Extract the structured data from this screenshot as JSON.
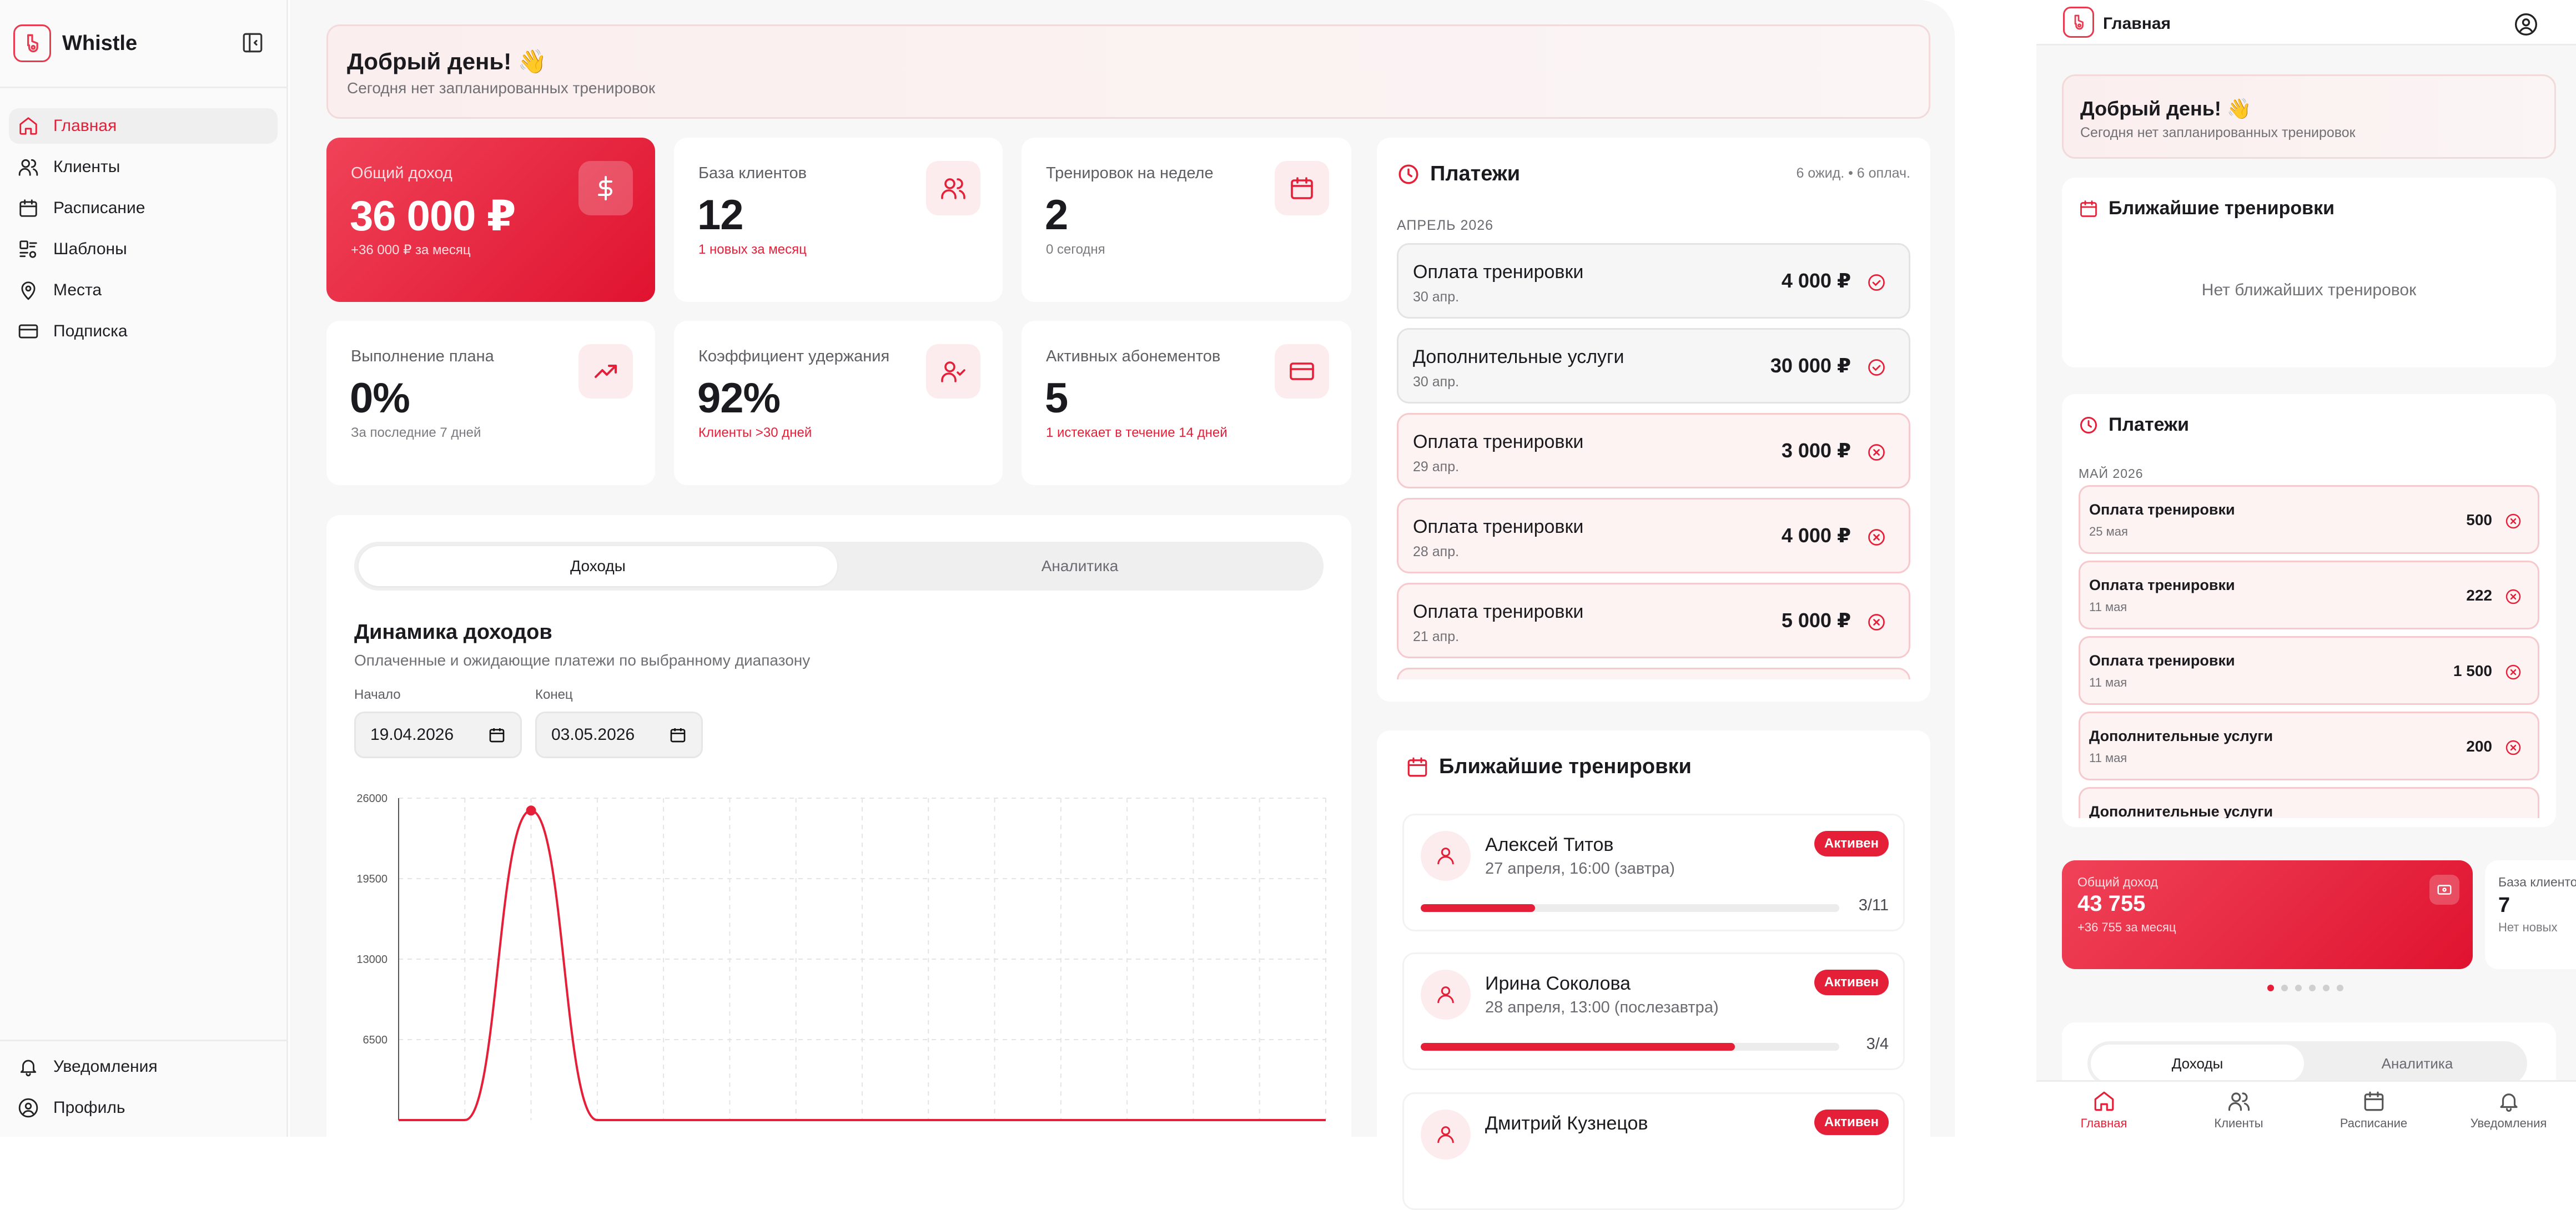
{
  "app": {
    "name": "Whistle"
  },
  "sidebar": {
    "items": [
      {
        "label": "Главная",
        "icon": "home-icon",
        "active": true
      },
      {
        "label": "Клиенты",
        "icon": "users-icon"
      },
      {
        "label": "Расписание",
        "icon": "calendar-icon"
      },
      {
        "label": "Шаблоны",
        "icon": "templates-icon"
      },
      {
        "label": "Места",
        "icon": "map-pin-icon"
      },
      {
        "label": "Подписка",
        "icon": "credit-card-icon"
      }
    ],
    "bottom": [
      {
        "label": "Уведомления",
        "icon": "bell-icon"
      },
      {
        "label": "Профиль",
        "icon": "user-circle-icon"
      }
    ]
  },
  "greeting": {
    "title": "Добрый день! 👋",
    "subtitle": "Сегодня нет запланированных тренировок"
  },
  "stats": [
    {
      "label": "Общий доход",
      "value": "36 000 ₽",
      "sub": "+36 000 ₽ за месяц",
      "icon": "dollar-icon"
    },
    {
      "label": "База клиентов",
      "value": "12",
      "sub": "1 новых за месяц",
      "icon": "users-icon"
    },
    {
      "label": "Тренировок на неделе",
      "value": "2",
      "sub": "0 сегодня",
      "icon": "calendar-icon"
    },
    {
      "label": "Выполнение плана",
      "value": "0%",
      "sub": "За последние 7 дней",
      "icon": "trending-up-icon"
    },
    {
      "label": "Коэффициент удержания",
      "value": "92%",
      "sub": "Клиенты >30 дней",
      "icon": "user-check-icon"
    },
    {
      "label": "Активных абонементов",
      "value": "5",
      "sub": "1 истекает в течение 14 дней",
      "icon": "credit-card-icon"
    }
  ],
  "chart_section": {
    "tabs": [
      "Доходы",
      "Аналитика"
    ],
    "active_tab": "Доходы",
    "title": "Динамика доходов",
    "subtitle": "Оплаченные и ожидающие платежи по выбранному диапазону",
    "start_label": "Начало",
    "start_value": "19.04.2026",
    "end_label": "Конец",
    "end_value": "03.05.2026"
  },
  "chart_data": {
    "type": "line",
    "title": "Динамика доходов",
    "y_ticks": [
      26000,
      19500,
      13000,
      6500
    ],
    "ylim": [
      0,
      26000
    ],
    "x": [
      0,
      1,
      2,
      3,
      4,
      5,
      6,
      7,
      8,
      9,
      10,
      11,
      12,
      13,
      14
    ],
    "series": [
      {
        "values": [
          0,
          0,
          25000,
          0,
          0,
          0,
          0,
          0,
          0,
          0,
          0,
          0,
          0,
          0,
          0
        ]
      }
    ],
    "grid": true,
    "colors": {
      "line": "#e51f38"
    }
  },
  "payments": {
    "title": "Платежи",
    "count": "6 ожид. • 6 оплач.",
    "month": "АПРЕЛЬ 2026",
    "items": [
      {
        "name": "Оплата тренировки",
        "date": "30 апр.",
        "amount": "4 000 ₽",
        "status": "paid"
      },
      {
        "name": "Дополнительные услуги",
        "date": "30 апр.",
        "amount": "30 000 ₽",
        "status": "paid"
      },
      {
        "name": "Оплата тренировки",
        "date": "29 апр.",
        "amount": "3 000 ₽",
        "status": "pending"
      },
      {
        "name": "Оплата тренировки",
        "date": "28 апр.",
        "amount": "4 000 ₽",
        "status": "pending"
      },
      {
        "name": "Оплата тренировки",
        "date": "21 апр.",
        "amount": "5 000 ₽",
        "status": "pending"
      }
    ]
  },
  "upcoming": {
    "title": "Ближайшие тренировки",
    "items": [
      {
        "name": "Алексей Титов",
        "time": "27 апреля, 16:00 (завтра)",
        "badge": "Активен",
        "progress": "3/11",
        "fraction": 0.273
      },
      {
        "name": "Ирина Соколова",
        "time": "28 апреля, 13:00 (послезавтра)",
        "badge": "Активен",
        "progress": "3/4",
        "fraction": 0.75
      },
      {
        "name": "Дмитрий Кузнецов",
        "time": "",
        "badge": "Активен",
        "progress": "",
        "fraction": 0
      }
    ]
  },
  "mobile": {
    "header_title": "Главная",
    "greeting_title": "Добрый день! 👋",
    "greeting_subtitle": "Сегодня нет запланированных тренировок",
    "upcoming_title": "Ближайшие тренировки",
    "upcoming_empty": "Нет ближайших тренировок",
    "payments_title": "Платежи",
    "payments_month": "МАЙ 2026",
    "payments": [
      {
        "name": "Оплата тренировки",
        "date": "25 мая",
        "amount": "500"
      },
      {
        "name": "Оплата тренировки",
        "date": "11 мая",
        "amount": "222"
      },
      {
        "name": "Оплата тренировки",
        "date": "11 мая",
        "amount": "1 500"
      },
      {
        "name": "Дополнительные услуги",
        "date": "11 мая",
        "amount": "200"
      },
      {
        "name": "Дополнительные услуги",
        "date": "",
        "amount": ""
      }
    ],
    "hero": {
      "label": "Общий доход",
      "value": "43 755",
      "sub": "+36 755 за месяц"
    },
    "second": {
      "label": "База клиентов",
      "value": "7",
      "sub": "Нет новых"
    },
    "tabs": [
      "Доходы",
      "Аналитика"
    ],
    "nav": [
      {
        "label": "Главная",
        "icon": "home-icon",
        "active": true
      },
      {
        "label": "Клиенты",
        "icon": "users-icon"
      },
      {
        "label": "Расписание",
        "icon": "calendar-icon"
      },
      {
        "label": "Уведомления",
        "icon": "bell-icon"
      }
    ]
  },
  "colors": {
    "accent": "#e51f38",
    "pending_bg": "#fdf3f3",
    "paid_bg": "#f6f6f6"
  }
}
